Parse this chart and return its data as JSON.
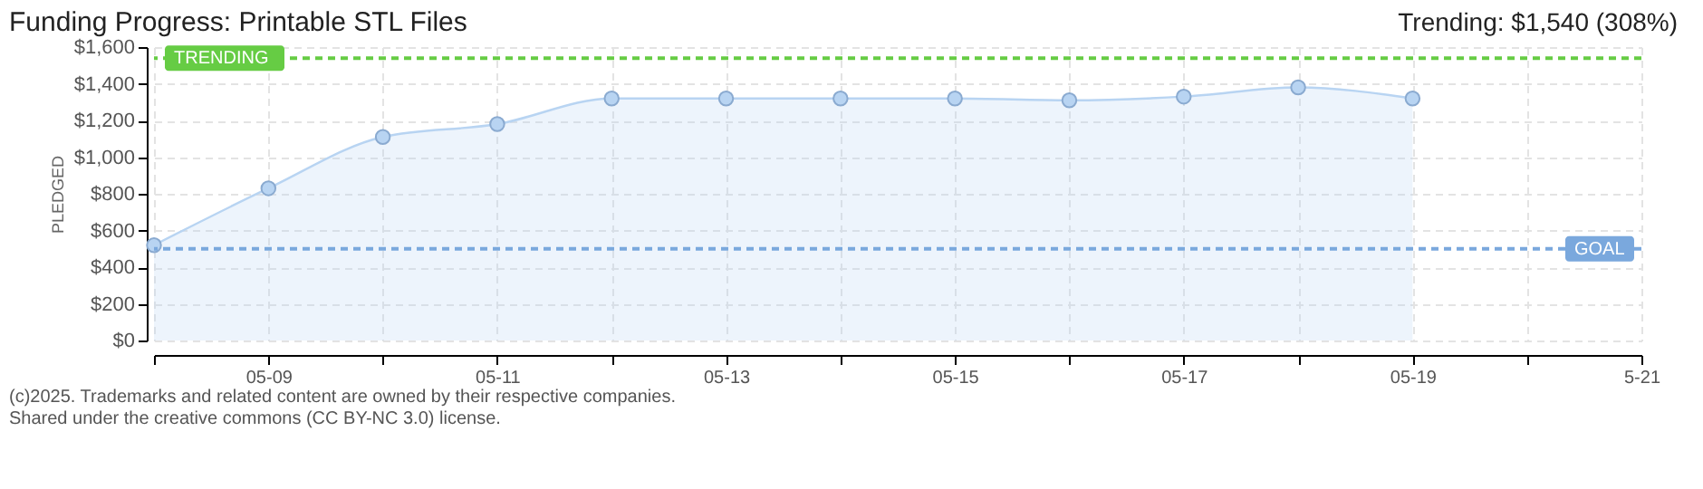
{
  "chart_data": {
    "type": "area",
    "title": "Funding Progress: Printable STL Files",
    "subtitle": "Trending: $1,540 (308%)",
    "ylabel": "PLEDGED",
    "x": [
      "--05-08",
      "--05-09",
      "--05-10",
      "--05-11",
      "--05-12",
      "--05-13",
      "--05-14",
      "--05-15",
      "--05-16",
      "--05-17",
      "--05-18",
      "--05-19"
    ],
    "series": [
      {
        "color": "#b8d4f2",
        "values": [
          520,
          830,
          1110,
          1180,
          1320,
          1320,
          1320,
          1320,
          1310,
          1330,
          1380,
          1320
        ]
      }
    ],
    "xlim": [
      "--05-08",
      "--05-21"
    ],
    "xticks": [
      {
        "value": "--05-08",
        "label": null
      },
      {
        "value": "--05-09",
        "label": "05-09"
      },
      {
        "value": "--05-10",
        "label": null
      },
      {
        "value": "--05-11",
        "label": "05-11"
      },
      {
        "value": "--05-12",
        "label": null
      },
      {
        "value": "--05-13",
        "label": "05-13"
      },
      {
        "value": "--05-14",
        "label": null
      },
      {
        "value": "--05-15",
        "label": "05-15"
      },
      {
        "value": "--05-16",
        "label": null
      },
      {
        "value": "--05-17",
        "label": "05-17"
      },
      {
        "value": "--05-18",
        "label": null
      },
      {
        "value": "--05-19",
        "label": "05-19"
      },
      {
        "value": "--05-20",
        "label": null
      },
      {
        "value": "--05-21",
        "label": "5-21"
      }
    ],
    "ylim": [
      0,
      1600
    ],
    "yticks": [
      {
        "value": 0,
        "label": "$0"
      },
      {
        "value": 200,
        "label": "$200"
      },
      {
        "value": 400,
        "label": "$400"
      },
      {
        "value": 600,
        "label": "$600"
      },
      {
        "value": 800,
        "label": "$800"
      },
      {
        "value": 1000,
        "label": "$1,000"
      },
      {
        "value": 1200,
        "label": "$1,200"
      },
      {
        "value": 1400,
        "label": "$1,400"
      },
      {
        "value": 1600,
        "label": "$1,600"
      }
    ],
    "ref_lines": [
      {
        "axis": "y",
        "value": 1540,
        "label": "TRENDING",
        "color": "#66cc44",
        "line_style": "dashed"
      },
      {
        "axis": "y",
        "value": 500,
        "label": "GOAL",
        "color": "#7aa8dd",
        "line_style": "dashed"
      }
    ],
    "annotations": [
      "(c)2025. Trademarks and related content are owned by their respective companies.",
      "Shared under the creative commons (CC BY-NC 3.0) license."
    ],
    "grid": true,
    "marker": "circle",
    "line_style": "solid"
  }
}
